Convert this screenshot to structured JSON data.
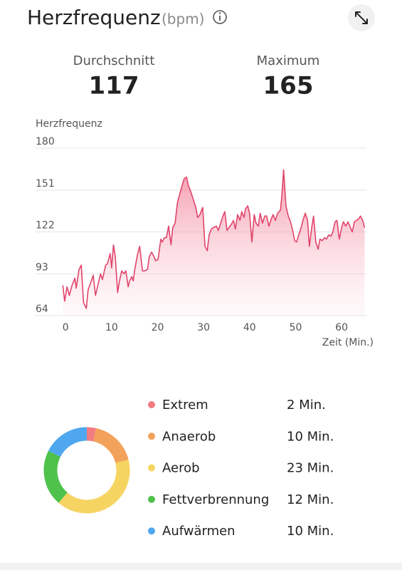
{
  "header": {
    "title": "Herzfrequenz",
    "unit": "(bpm)"
  },
  "stats": [
    {
      "label": "Durchschnitt",
      "value": 117
    },
    {
      "label": "Maximum",
      "value": 165
    }
  ],
  "chart_data": [
    {
      "type": "area",
      "y_label": "Herzfrequenz",
      "x_label": "Zeit (Min.)",
      "color": "#e0456a",
      "xlim": [
        -2.2,
        65.4
      ],
      "ylim": [
        64,
        180
      ],
      "xticks": [
        0,
        10,
        20,
        30,
        40,
        50,
        60
      ],
      "yticks": [
        64,
        93,
        122,
        151,
        180
      ],
      "grid": true,
      "x": [
        -0.6,
        -0.2,
        0.3,
        0.8,
        1.4,
        2.0,
        2.3,
        2.9,
        3.4,
        3.9,
        4.5,
        4.9,
        5.6,
        6.0,
        6.5,
        7.0,
        7.6,
        8.0,
        8.7,
        9.1,
        9.7,
        10.0,
        10.4,
        10.8,
        11.3,
        11.7,
        12.2,
        12.7,
        13.1,
        13.6,
        13.9,
        14.4,
        14.7,
        15.1,
        15.6,
        16.1,
        16.7,
        17.2,
        17.8,
        18.2,
        18.7,
        19.2,
        19.6,
        20.1,
        20.7,
        21.0,
        21.5,
        21.9,
        22.4,
        22.9,
        23.3,
        23.8,
        24.3,
        24.7,
        25.3,
        25.8,
        26.3,
        26.7,
        27.2,
        27.8,
        28.3,
        28.7,
        29.2,
        29.8,
        30.3,
        30.8,
        31.2,
        31.7,
        32.1,
        32.8,
        33.2,
        33.7,
        34.2,
        34.6,
        35.1,
        35.5,
        36.0,
        36.5,
        36.9,
        37.4,
        37.9,
        38.3,
        38.8,
        39.1,
        39.6,
        40.0,
        40.5,
        41.0,
        41.4,
        41.9,
        42.3,
        42.8,
        43.3,
        43.7,
        44.2,
        44.7,
        45.1,
        45.6,
        46.1,
        46.7,
        47.0,
        47.4,
        47.9,
        48.4,
        48.8,
        49.3,
        49.8,
        50.2,
        50.7,
        51.2,
        51.6,
        52.1,
        52.6,
        53.0,
        53.5,
        53.9,
        54.4,
        54.9,
        55.3,
        55.8,
        56.3,
        56.7,
        57.2,
        57.7,
        58.1,
        58.6,
        59.0,
        59.5,
        60.0,
        60.4,
        60.9,
        61.4,
        61.8,
        62.3,
        62.8,
        63.2,
        63.7,
        64.1,
        64.6,
        65.0
      ],
      "values": [
        85,
        74,
        84,
        78,
        85,
        90,
        83,
        96,
        99,
        73,
        69,
        82,
        88,
        92,
        78,
        85,
        93,
        89,
        99,
        100,
        107,
        97,
        113,
        105,
        80,
        88,
        95,
        93,
        95,
        84,
        88,
        91,
        88,
        97,
        106,
        112,
        95,
        95,
        96,
        105,
        108,
        105,
        102,
        103,
        117,
        115,
        118,
        118,
        126,
        113,
        125,
        128,
        142,
        147,
        154,
        159,
        160,
        154,
        150,
        144,
        139,
        132,
        134,
        139,
        112,
        109,
        120,
        124,
        125,
        126,
        123,
        128,
        133,
        136,
        123,
        125,
        127,
        130,
        124,
        134,
        130,
        136,
        132,
        138,
        140,
        135,
        115,
        134,
        128,
        126,
        135,
        128,
        133,
        133,
        126,
        131,
        134,
        130,
        135,
        137,
        147,
        165,
        140,
        133,
        130,
        124,
        116,
        115,
        120,
        125,
        130,
        135,
        130,
        112,
        125,
        133,
        115,
        110,
        117,
        116,
        118,
        117,
        120,
        119,
        122,
        129,
        130,
        117,
        125,
        129,
        126,
        129,
        126,
        122,
        129,
        130,
        131,
        133,
        130,
        125
      ]
    },
    {
      "type": "donut",
      "categories": [
        "Extrem",
        "Anaerob",
        "Aerob",
        "Fettverbrennung",
        "Aufwärmen"
      ],
      "values": [
        2,
        10,
        23,
        12,
        10
      ],
      "value_labels": [
        "2 Min.",
        "10 Min.",
        "23 Min.",
        "12 Min.",
        "10 Min."
      ],
      "colors": [
        "#f27c80",
        "#f3a25c",
        "#f6d462",
        "#4fc24c",
        "#4fa8ef"
      ]
    }
  ]
}
